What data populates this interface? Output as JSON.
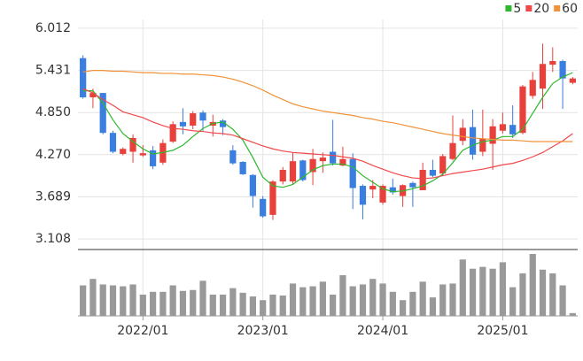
{
  "chart_data": {
    "type": "candlestick",
    "categories": [
      null,
      null,
      null,
      null,
      null,
      null,
      "2022/01",
      null,
      null,
      null,
      null,
      null,
      null,
      null,
      null,
      null,
      null,
      null,
      "2023/01",
      null,
      null,
      null,
      null,
      null,
      null,
      null,
      null,
      null,
      null,
      null,
      "2024/01",
      null,
      null,
      null,
      null,
      null,
      null,
      null,
      null,
      null,
      null,
      null,
      "2025/01",
      null,
      null,
      null,
      null,
      null,
      null,
      null
    ],
    "open": [
      5.6,
      5.06,
      5.12,
      4.57,
      4.28,
      4.31,
      4.26,
      4.33,
      4.16,
      4.45,
      4.72,
      4.67,
      4.85,
      4.67,
      4.74,
      4.33,
      4.17,
      3.99,
      3.66,
      3.44,
      3.9,
      3.9,
      4.19,
      4.03,
      4.18,
      4.31,
      4.12,
      4.21,
      3.84,
      3.79,
      3.61,
      3.82,
      3.7,
      3.88,
      3.78,
      4.06,
      4.01,
      4.21,
      4.46,
      4.65,
      4.31,
      4.42,
      4.6,
      4.68,
      4.57,
      5.08,
      5.18,
      5.51,
      5.56,
      5.26
    ],
    "high": [
      5.64,
      5.18,
      5.12,
      4.6,
      4.37,
      4.55,
      4.4,
      4.39,
      4.48,
      4.73,
      4.91,
      4.87,
      4.88,
      4.82,
      4.76,
      4.4,
      4.18,
      4.0,
      3.7,
      3.92,
      4.1,
      4.3,
      4.2,
      4.35,
      4.3,
      4.75,
      4.38,
      4.29,
      3.86,
      3.92,
      3.86,
      3.94,
      3.86,
      3.9,
      4.16,
      4.2,
      4.28,
      4.81,
      4.76,
      4.89,
      4.89,
      4.76,
      4.85,
      4.95,
      5.23,
      5.41,
      5.8,
      5.75,
      5.58,
      5.34
    ],
    "low": [
      5.04,
      4.91,
      4.55,
      4.29,
      4.26,
      4.16,
      4.24,
      4.07,
      4.13,
      4.43,
      4.55,
      4.62,
      4.6,
      4.52,
      4.54,
      4.13,
      3.99,
      3.54,
      3.4,
      3.37,
      3.86,
      3.87,
      3.9,
      3.85,
      4.02,
      4.12,
      4.11,
      3.52,
      3.38,
      3.67,
      3.58,
      3.72,
      3.55,
      3.55,
      3.78,
      3.96,
      3.98,
      4.19,
      4.4,
      4.2,
      4.25,
      4.06,
      4.56,
      4.5,
      4.55,
      5.04,
      4.9,
      5.41,
      4.9,
      5.24
    ],
    "close": [
      5.06,
      5.12,
      4.57,
      4.31,
      4.35,
      4.5,
      4.29,
      4.11,
      4.43,
      4.69,
      4.66,
      4.84,
      4.74,
      4.72,
      4.65,
      4.15,
      4.0,
      3.7,
      3.42,
      3.9,
      4.06,
      4.18,
      3.92,
      4.21,
      4.23,
      4.15,
      4.21,
      3.81,
      3.58,
      3.84,
      3.84,
      3.75,
      3.85,
      3.82,
      4.06,
      3.98,
      4.25,
      4.43,
      4.64,
      4.27,
      4.49,
      4.66,
      4.69,
      4.55,
      5.21,
      5.3,
      5.52,
      5.56,
      5.32,
      5.32
    ],
    "up_color": "#e8413c",
    "down_color": "#3a7ee0",
    "moving_averages": [
      {
        "name": "5",
        "color": "#2db82d",
        "values": [
          5.15,
          5.15,
          4.98,
          4.75,
          4.56,
          4.45,
          4.35,
          4.28,
          4.3,
          4.33,
          4.4,
          4.52,
          4.63,
          4.7,
          4.72,
          4.62,
          4.47,
          4.23,
          3.96,
          3.84,
          3.82,
          3.86,
          3.96,
          4.06,
          4.12,
          4.14,
          4.14,
          4.1,
          3.98,
          3.89,
          3.8,
          3.76,
          3.77,
          3.8,
          3.84,
          3.91,
          4.0,
          4.16,
          4.33,
          4.4,
          4.45,
          4.47,
          4.52,
          4.52,
          4.62,
          4.84,
          5.06,
          5.25,
          5.34,
          5.4
        ]
      },
      {
        "name": "20",
        "color": "#f0484a",
        "values": [
          5.18,
          5.12,
          5.03,
          4.95,
          4.86,
          4.82,
          4.78,
          4.72,
          4.67,
          4.63,
          4.62,
          4.6,
          4.59,
          4.57,
          4.56,
          4.54,
          4.49,
          4.44,
          4.39,
          4.35,
          4.32,
          4.3,
          4.29,
          4.28,
          4.27,
          4.26,
          4.24,
          4.22,
          4.18,
          4.12,
          4.07,
          4.02,
          3.98,
          3.95,
          3.94,
          3.95,
          3.98,
          4.01,
          4.03,
          4.05,
          4.07,
          4.1,
          4.13,
          4.15,
          4.19,
          4.24,
          4.3,
          4.38,
          4.46,
          4.56
        ]
      },
      {
        "name": "60",
        "color": "#f0923a",
        "values": [
          5.41,
          5.43,
          5.43,
          5.42,
          5.42,
          5.41,
          5.4,
          5.4,
          5.39,
          5.39,
          5.38,
          5.38,
          5.37,
          5.36,
          5.34,
          5.31,
          5.27,
          5.22,
          5.16,
          5.09,
          5.03,
          4.97,
          4.93,
          4.9,
          4.87,
          4.85,
          4.83,
          4.81,
          4.78,
          4.76,
          4.73,
          4.71,
          4.68,
          4.65,
          4.62,
          4.59,
          4.56,
          4.54,
          4.52,
          4.5,
          4.49,
          4.48,
          4.47,
          4.47,
          4.46,
          4.45,
          4.45,
          4.45,
          4.45,
          4.45
        ]
      }
    ],
    "volume": {
      "color": "#999999",
      "values": [
        33,
        40,
        34,
        33,
        32,
        34,
        23,
        26,
        26,
        33,
        27,
        28,
        38,
        23,
        23,
        30,
        25,
        21,
        17,
        23,
        22,
        35,
        31,
        32,
        37,
        23,
        44,
        32,
        34,
        40,
        35,
        26,
        17,
        26,
        37,
        20,
        34,
        35,
        61,
        51,
        53,
        51,
        58,
        31,
        46,
        67,
        50,
        46,
        33,
        3
      ]
    },
    "ylim": [
      2.975,
      6.133
    ],
    "yticks": [
      3.108,
      3.689,
      {
        "value": 4.27,
        "label": "4.270"
      },
      {
        "value": 4.85,
        "label": "4.850"
      },
      5.431,
      6.012
    ],
    "grid": true
  }
}
